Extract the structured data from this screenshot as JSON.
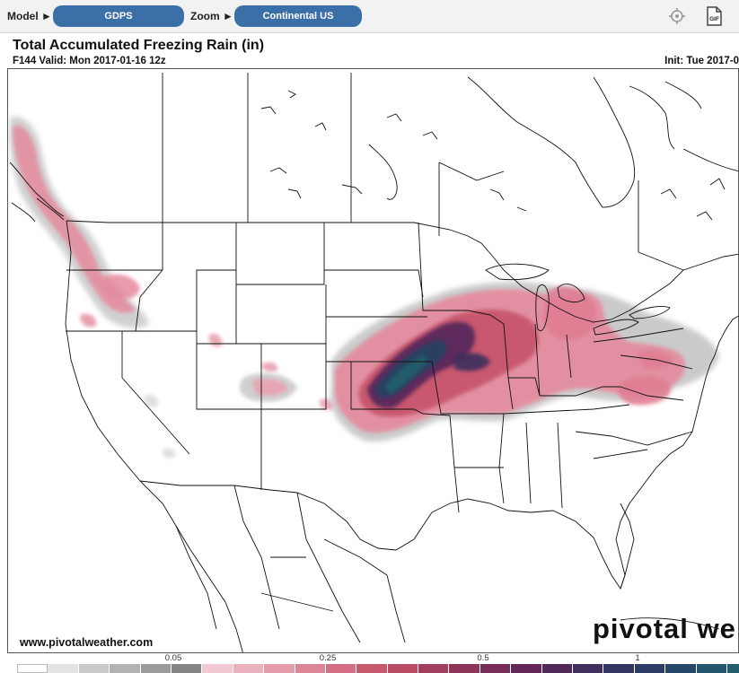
{
  "toolbar": {
    "model_label": "Model ►",
    "model_value": "GDPS",
    "zoom_label": "Zoom ►",
    "zoom_value": "Continental US",
    "locate_icon": "crosshair-icon",
    "gif_icon": "gif-file-icon",
    "gif_text": "GIF"
  },
  "header": {
    "title": "Total Accumulated Freezing Rain (in)",
    "valid": "F144 Valid: Mon 2017-01-16 12z",
    "init": "Init: Tue 2017-0"
  },
  "footer": {
    "website": "www.pivotalweather.com",
    "brand": "pivotal we"
  },
  "colorbar": {
    "labels": [
      {
        "text": "0.05",
        "value": 0.05
      },
      {
        "text": "0.25",
        "value": 0.25
      },
      {
        "text": "0.5",
        "value": 0.5
      },
      {
        "text": "1",
        "value": 1
      }
    ],
    "colors": [
      "#ffffff",
      "#e3e3e3",
      "#cacaca",
      "#b2b2b2",
      "#9b9b9b",
      "#858585",
      "#f2c9d2",
      "#eab2bf",
      "#e39bab",
      "#db8597",
      "#d46e84",
      "#c8586e",
      "#b84a64",
      "#a33f5e",
      "#8c3558",
      "#772d57",
      "#632656",
      "#4f2a59",
      "#3e2f5d",
      "#333560",
      "#2b3d64",
      "#254768",
      "#22566c",
      "#225e6c"
    ]
  },
  "map": {
    "region": "Continental US",
    "field": "freezing rain accumulation"
  }
}
